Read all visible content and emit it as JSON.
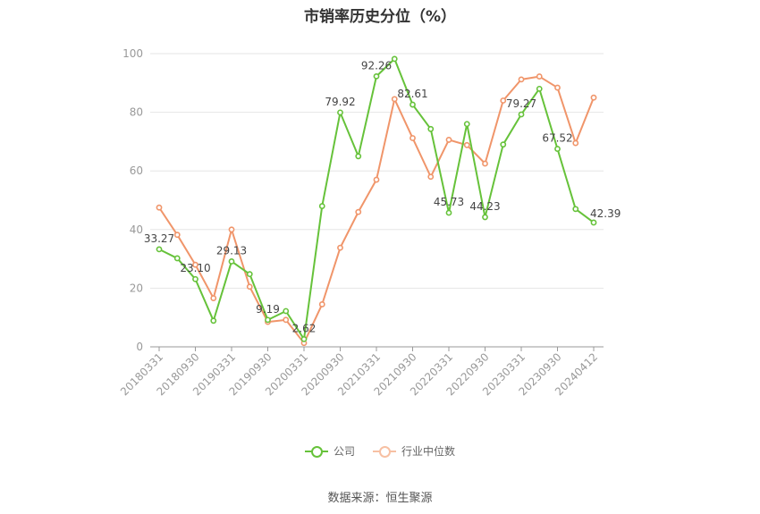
{
  "chart_data": {
    "type": "line",
    "title": "市销率历史分位（%）",
    "xlabel": "",
    "ylabel": "",
    "ylim": [
      0,
      100
    ],
    "yticks": [
      0,
      20,
      40,
      60,
      80,
      100
    ],
    "grid": true,
    "legend_position": "bottom",
    "x": [
      "20180331",
      "20180630",
      "20180930",
      "20181231",
      "20190331",
      "20190630",
      "20190930",
      "20191231",
      "20200331",
      "20200630",
      "20200930",
      "20201231",
      "20210331",
      "20210630",
      "20210930",
      "20211231",
      "20220331",
      "20220630",
      "20220930",
      "20221231",
      "20230331",
      "20230630",
      "20230930",
      "20231231",
      "20240412"
    ],
    "x_tick_labels": [
      "20180331",
      "20180930",
      "20190331",
      "20190930",
      "20200331",
      "20200930",
      "20210331",
      "20210930",
      "20220331",
      "20220930",
      "20230331",
      "20230930",
      "20240412"
    ],
    "series": [
      {
        "name": "公司",
        "color": "#66c23a",
        "values": [
          33.27,
          30.2,
          23.1,
          8.9,
          29.13,
          24.8,
          9.19,
          12.2,
          2.62,
          48.0,
          79.92,
          65.0,
          92.26,
          98.2,
          82.61,
          74.3,
          45.73,
          76.0,
          44.23,
          69.0,
          79.27,
          88.0,
          67.52,
          47.0,
          42.39
        ],
        "labels": {
          "0": "33.27",
          "2": "23.10",
          "4": "29.13",
          "6": "9.19",
          "8": "2.62",
          "10": "79.92",
          "12": "92.26",
          "14": "82.61",
          "16": "45.73",
          "18": "44.23",
          "20": "79.27",
          "22": "67.52",
          "24": "42.39"
        }
      },
      {
        "name": "行业中位数",
        "color": "#f0956a",
        "values": [
          47.5,
          38.2,
          28.0,
          16.6,
          40.0,
          20.5,
          8.5,
          9.2,
          1.3,
          14.5,
          33.8,
          46.0,
          57.0,
          84.5,
          71.2,
          58.0,
          70.6,
          68.8,
          62.5,
          84.0,
          91.2,
          92.2,
          88.4,
          69.5,
          85.0
        ]
      }
    ]
  },
  "source_text": "数据来源：恒生聚源"
}
